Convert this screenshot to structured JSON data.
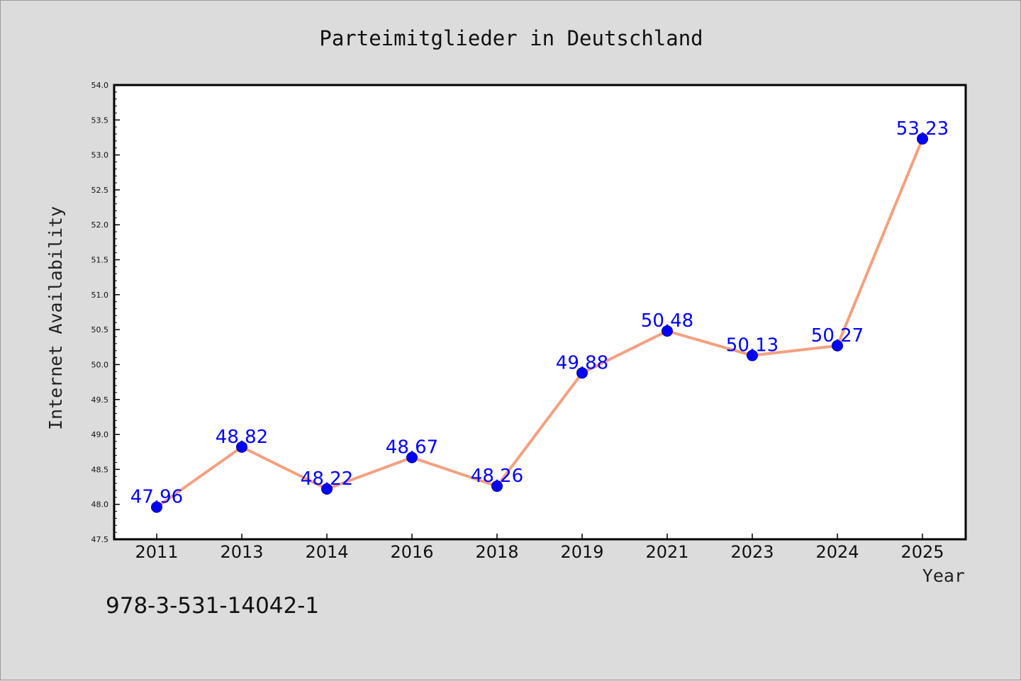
{
  "chart_data": {
    "type": "line",
    "title": "Parteimitglieder in Deutschland",
    "xlabel": "Year",
    "ylabel": "Internet Availability",
    "categories": [
      "2011",
      "2013",
      "2014",
      "2016",
      "2018",
      "2019",
      "2021",
      "2023",
      "2024",
      "2025"
    ],
    "values": [
      47.96,
      48.82,
      48.22,
      48.67,
      48.26,
      49.88,
      50.48,
      50.13,
      50.27,
      53.23
    ],
    "value_labels": [
      "47.96",
      "48.82",
      "48.22",
      "48.67",
      "48.26",
      "49.88",
      "50.48",
      "50.13",
      "50.27",
      "53.23"
    ],
    "ylim": [
      47.5,
      54.0
    ],
    "yticks": [
      "47.5",
      "48.0",
      "48.5",
      "49.0",
      "49.5",
      "50.0",
      "50.5",
      "51.0",
      "51.5",
      "52.0",
      "52.5",
      "53.0",
      "53.5",
      "54.0"
    ],
    "grid": false,
    "legend": "none",
    "colors": {
      "line": "#f4a07f",
      "marker": "#0000ff",
      "label": "#0000ff",
      "plot_background": "#ffffff",
      "figure_background": "#dcdcdc"
    }
  },
  "annotation": "978-3-531-14042-1"
}
